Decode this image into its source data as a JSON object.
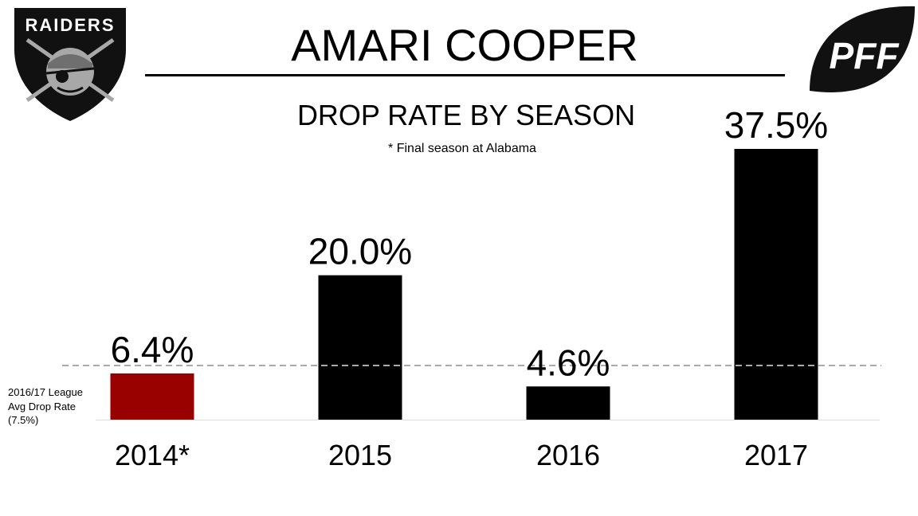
{
  "header": {
    "player_name": "AMARI COOPER",
    "subtitle": "DROP RATE BY SEASON",
    "footnote": "* Final season at Alabama"
  },
  "logos": {
    "team_logo_text": "RAIDERS",
    "pff_logo_text": "PFF"
  },
  "reference_line": {
    "label_lines": [
      "2016/17 League",
      "Avg Drop Rate",
      "(7.5%)"
    ],
    "value": 7.5
  },
  "colors": {
    "highlight_bar": "#990000",
    "default_bar": "#000000",
    "reference_line": "#aaaaaa",
    "logo_black": "#111111",
    "logo_silver": "#a8a8a8"
  },
  "chart_data": {
    "type": "bar",
    "title": "DROP RATE BY SEASON",
    "categories": [
      "2014*",
      "2015",
      "2016",
      "2017"
    ],
    "values": [
      6.4,
      20.0,
      4.6,
      37.5
    ],
    "data_labels": [
      "6.4%",
      "20.0%",
      "4.6%",
      "37.5%"
    ],
    "highlight_index": 0,
    "reference_value": 7.5,
    "grid": false
  }
}
